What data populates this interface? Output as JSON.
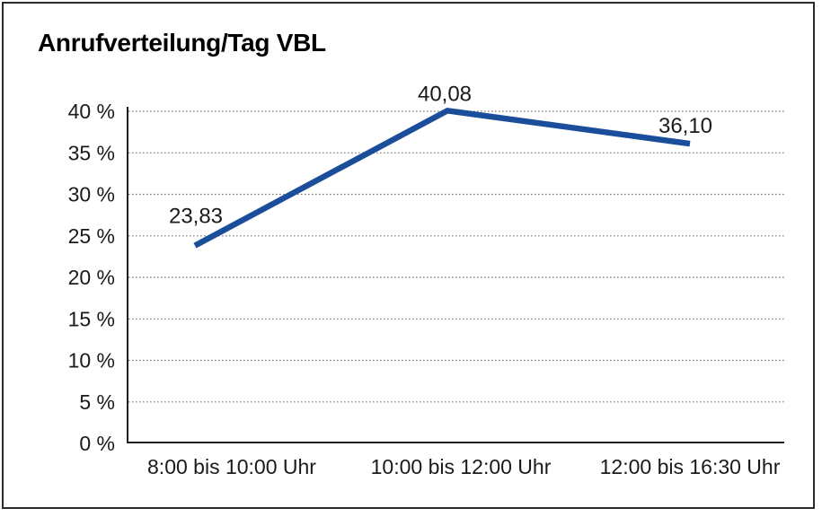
{
  "window": {
    "background_color": "#ffffff",
    "frame_border_color": "#2b2b2b"
  },
  "chart_data": {
    "type": "line",
    "title": "Anrufverteilung/Tag VBL",
    "categories": [
      "8:00 bis 10:00 Uhr",
      "10:00 bis 12:00 Uhr",
      "12:00 bis 16:30 Uhr"
    ],
    "values": [
      23.83,
      40.08,
      36.1
    ],
    "point_labels": [
      "23,83",
      "40,08",
      "36,10"
    ],
    "xlabel": "",
    "ylabel": "",
    "ylim": [
      0,
      40
    ],
    "y_tick_step": 5,
    "y_tick_labels": [
      "0 %",
      "5 %",
      "10 %",
      "15 %",
      "20 %",
      "25 %",
      "30 %",
      "35 %",
      "40 %"
    ],
    "grid": "horizontal-dotted",
    "legend_position": "none",
    "line_color": "#1a4e9b",
    "text_color": "#1a1a1a",
    "axis_color": "#1f1f1f",
    "grid_color": "#7a7a7a"
  }
}
